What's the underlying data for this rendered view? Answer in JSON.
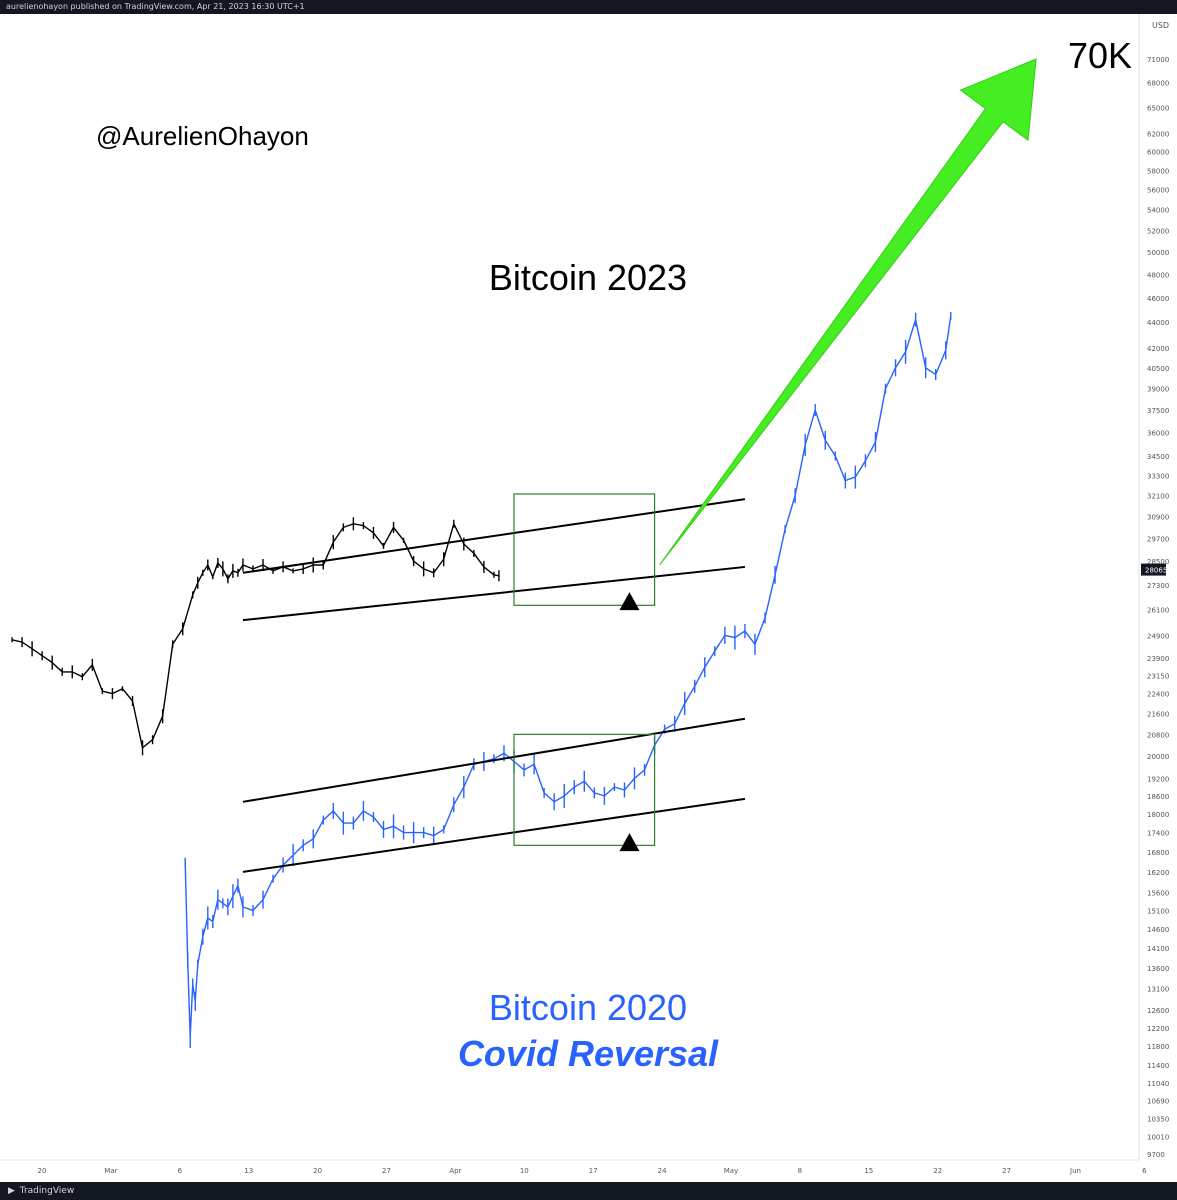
{
  "header": {
    "published_text": "aurelienohayon published on TradingView.com, Apr 21, 2023 16:30 UTC+1"
  },
  "footer": {
    "brand": "TradingView",
    "brand_icon": "tradingview-logo-icon"
  },
  "colors": {
    "btc2023": "#000000",
    "btc2020": "#2962ff",
    "arrow": "#44ee22",
    "box": "#2e7d32",
    "accent_text": "#2962ff"
  },
  "annotations": {
    "author": "@AurelienOhayon",
    "btc2023_label": "Bitcoin 2023",
    "btc2020_label": "Bitcoin 2020",
    "btc2020_sublabel": "Covid Reversal",
    "target_label": "70K",
    "price_marker": "28065"
  },
  "chart_data": {
    "type": "line",
    "title": "",
    "price_axis": {
      "unit": "USD",
      "scale": "log",
      "ticks": [
        9700,
        10010,
        10350,
        10690,
        11040,
        11400,
        11800,
        12200,
        12600,
        13100,
        13600,
        14100,
        14600,
        15100,
        15600,
        16200,
        16800,
        17400,
        18000,
        18600,
        19200,
        20000,
        20800,
        21600,
        22400,
        23150,
        23900,
        24900,
        26100,
        27300,
        28500,
        29700,
        30900,
        32100,
        33300,
        34500,
        36000,
        37500,
        39000,
        40500,
        42000,
        44000,
        46000,
        48000,
        50000,
        52000,
        54000,
        56000,
        58000,
        60000,
        62000,
        65000,
        68000,
        71000
      ]
    },
    "time_axis": {
      "ticks": [
        "20",
        "Mar",
        "6",
        "13",
        "20",
        "27",
        "Apr",
        "10",
        "17",
        "24",
        "May",
        "8",
        "15",
        "22",
        "27",
        "Jun",
        "6"
      ]
    },
    "series": [
      {
        "name": "Bitcoin 2023",
        "x": [
          1,
          3,
          5,
          7,
          9,
          11,
          13,
          15,
          17,
          19,
          21,
          23,
          25,
          27,
          29,
          31,
          33,
          35,
          37,
          38,
          39,
          40,
          41,
          42,
          43,
          44,
          45,
          46,
          47,
          49,
          51,
          53,
          55,
          57,
          59,
          61,
          63,
          65,
          67,
          69,
          71,
          73,
          75,
          77,
          79,
          81,
          83,
          85,
          87,
          89,
          91,
          93,
          95,
          97,
          98
        ],
        "values": [
          24700,
          24600,
          24300,
          24000,
          23700,
          23300,
          23300,
          23100,
          23600,
          22500,
          22400,
          22600,
          22100,
          20300,
          20600,
          21500,
          24500,
          25200,
          26800,
          27400,
          27900,
          28300,
          27700,
          28400,
          28100,
          27600,
          28000,
          27900,
          28300,
          28100,
          28300,
          28000,
          28200,
          28000,
          28100,
          28300,
          28300,
          29500,
          30300,
          30500,
          30400,
          30000,
          29300,
          30300,
          29600,
          28500,
          28100,
          27900,
          28600,
          30500,
          29400,
          28900,
          28200,
          27800,
          27750
        ]
      },
      {
        "name": "Bitcoin 2020",
        "x": [
          35.5,
          36,
          36.5,
          37,
          37.5,
          38,
          39,
          40,
          41,
          42,
          43,
          44,
          45,
          46,
          47,
          49,
          51,
          53,
          55,
          57,
          59,
          61,
          63,
          65,
          67,
          69,
          71,
          73,
          75,
          77,
          79,
          81,
          83,
          85,
          87,
          89,
          91,
          93,
          95,
          97,
          99,
          101,
          103,
          105,
          107,
          109,
          111,
          113,
          115,
          117,
          119,
          121,
          123,
          125,
          127,
          129,
          131,
          133,
          135,
          137,
          139,
          141,
          143,
          145,
          147,
          149,
          151,
          153,
          155,
          157,
          159,
          161,
          163,
          165,
          167,
          169,
          171,
          173,
          175,
          177,
          179,
          181,
          183,
          185,
          187,
          188
        ],
        "values": [
          16500,
          13800,
          12000,
          13200,
          12800,
          13700,
          14400,
          14900,
          14800,
          15400,
          15300,
          15200,
          15500,
          15800,
          15200,
          15100,
          15400,
          16000,
          16400,
          16700,
          17000,
          17200,
          17800,
          18100,
          17700,
          17700,
          18100,
          17900,
          17500,
          17600,
          17400,
          17400,
          17400,
          17300,
          17500,
          18300,
          18900,
          19700,
          19800,
          19900,
          20100,
          19800,
          19500,
          19700,
          18700,
          18400,
          18600,
          18900,
          19100,
          18700,
          18600,
          18900,
          18800,
          19200,
          19500,
          20400,
          21000,
          21200,
          22000,
          22700,
          23500,
          24200,
          24900,
          24800,
          25100,
          24500,
          25700,
          27800,
          30200,
          32100,
          35200,
          37500,
          35500,
          34500,
          33000,
          33200,
          34200,
          35400,
          39000,
          40500,
          41700,
          44200,
          40500,
          40000,
          41800,
          44500
        ]
      }
    ],
    "overlays": {
      "channels": [
        {
          "series": "Bitcoin 2023",
          "upper": [
            [
              47,
              27900
            ],
            [
              147,
              31900
            ]
          ],
          "lower": [
            [
              47,
              25600
            ],
            [
              147,
              28200
            ]
          ]
        },
        {
          "series": "Bitcoin 2020",
          "upper": [
            [
              47,
              18400
            ],
            [
              147,
              21400
            ]
          ],
          "lower": [
            [
              47,
              16200
            ],
            [
              147,
              18500
            ]
          ]
        }
      ],
      "boxes": [
        {
          "series": "Bitcoin 2023",
          "x": [
            101,
            129
          ],
          "y": [
            26300,
            32200
          ]
        },
        {
          "series": "Bitcoin 2020",
          "x": [
            101,
            129
          ],
          "y": [
            17000,
            20800
          ]
        }
      ],
      "arrow": {
        "from": [
          130,
          28300
        ],
        "to": [
          205,
          71000
        ]
      },
      "triangle_markers": [
        {
          "x": 124,
          "y": 26500
        },
        {
          "x": 124,
          "y": 17100
        }
      ]
    }
  }
}
